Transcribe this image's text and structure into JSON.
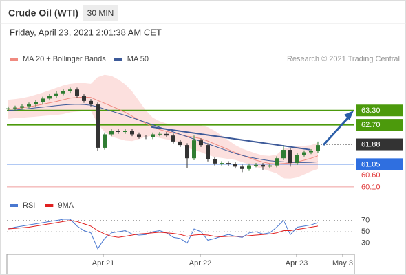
{
  "chart_data": {
    "type": "candlestick",
    "title": "Crude Oil (WTI)",
    "interval": "30 MIN",
    "timestamp": "Friday, April 23, 2021 2:01:38 AM CET",
    "credit": "Research © 2021 Trading Central",
    "x": [
      0,
      1,
      2,
      3,
      4,
      5,
      6,
      7,
      8,
      9,
      10,
      11,
      12,
      13,
      14,
      15,
      16,
      17,
      18,
      19,
      20,
      21,
      22,
      23,
      24,
      25,
      26,
      27,
      28,
      29,
      30,
      31,
      32,
      33,
      34,
      35,
      36,
      37,
      38,
      39,
      40,
      41,
      42,
      43,
      44,
      45
    ],
    "open": [
      63.35,
      63.39,
      63.42,
      63.48,
      63.55,
      63.65,
      63.8,
      63.92,
      64.02,
      64.12,
      64.18,
      63.9,
      63.7,
      63.55,
      61.74,
      62.3,
      62.45,
      62.4,
      62.45,
      62.3,
      62.2,
      62.18,
      62.3,
      62.32,
      62.25,
      62.0,
      61.85,
      61.3,
      62.05,
      61.85,
      61.25,
      61.08,
      61.1,
      61.05,
      60.95,
      60.85,
      61.0,
      61.02,
      60.95,
      61.0,
      61.3,
      61.65,
      61.1,
      61.45,
      61.55,
      61.6
    ],
    "high": [
      63.47,
      63.5,
      63.56,
      63.63,
      63.73,
      63.88,
      64.0,
      64.1,
      64.2,
      64.26,
      64.26,
      63.98,
      63.78,
      63.63,
      62.38,
      62.53,
      62.53,
      62.53,
      62.53,
      62.38,
      62.28,
      62.38,
      62.4,
      62.4,
      62.33,
      62.08,
      61.93,
      62.25,
      62.13,
      61.93,
      61.33,
      61.18,
      61.18,
      61.13,
      61.03,
      61.08,
      61.1,
      61.1,
      61.08,
      61.38,
      61.85,
      61.73,
      61.53,
      61.63,
      61.68,
      62.0
    ],
    "low": [
      63.27,
      63.31,
      63.34,
      63.4,
      63.47,
      63.57,
      63.72,
      63.84,
      63.94,
      64.04,
      63.82,
      63.62,
      63.47,
      61.6,
      61.66,
      62.22,
      62.32,
      62.32,
      62.22,
      62.12,
      62.1,
      62.1,
      62.22,
      62.17,
      61.92,
      61.77,
      60.9,
      61.22,
      61.77,
      61.17,
      61.0,
      61.0,
      60.97,
      60.87,
      60.72,
      60.77,
      60.92,
      60.8,
      60.87,
      60.92,
      61.22,
      60.95,
      61.02,
      61.37,
      61.47,
      61.52
    ],
    "close": [
      63.39,
      63.42,
      63.48,
      63.55,
      63.65,
      63.8,
      63.92,
      64.02,
      64.12,
      64.18,
      63.9,
      63.7,
      63.55,
      61.74,
      62.3,
      62.45,
      62.4,
      62.45,
      62.3,
      62.2,
      62.18,
      62.3,
      62.32,
      62.25,
      62.0,
      61.85,
      61.3,
      62.05,
      61.85,
      61.25,
      61.08,
      61.1,
      61.05,
      60.95,
      60.85,
      61.0,
      61.02,
      60.95,
      61.0,
      61.3,
      61.65,
      61.1,
      61.45,
      61.55,
      61.6,
      61.85
    ],
    "up_color": "#2f7d32",
    "down_color": "#333333",
    "series": [
      {
        "name": "MA 20 + Bollinger Bands",
        "color": "#f08a80",
        "values": [
          63.35,
          63.38,
          63.41,
          63.45,
          63.5,
          63.56,
          63.62,
          63.68,
          63.75,
          63.82,
          63.85,
          63.86,
          63.85,
          63.72,
          63.6,
          63.48,
          63.36,
          63.22,
          63.06,
          62.9,
          62.75,
          62.62,
          62.5,
          62.42,
          62.36,
          62.3,
          62.22,
          62.18,
          62.12,
          62.02,
          61.9,
          61.78,
          61.66,
          61.54,
          61.42,
          61.32,
          61.22,
          61.14,
          61.08,
          61.06,
          61.08,
          61.1,
          61.15,
          61.22,
          61.3,
          61.4
        ]
      },
      {
        "name": "MA 50",
        "color": "#3d5a99",
        "values": [
          63.3,
          63.32,
          63.35,
          63.38,
          63.41,
          63.44,
          63.47,
          63.5,
          63.53,
          63.55,
          63.56,
          63.55,
          63.52,
          63.45,
          63.36,
          63.27,
          63.18,
          63.09,
          63.0,
          62.9,
          62.8,
          62.7,
          62.6,
          62.5,
          62.4,
          62.3,
          62.2,
          62.1,
          62.0,
          61.9,
          61.8,
          61.7,
          61.6,
          61.5,
          61.42,
          61.35,
          61.29,
          61.24,
          61.2,
          61.17,
          61.15,
          61.13,
          61.12,
          61.12,
          61.13,
          61.15
        ]
      }
    ],
    "bb_color": "#fbd6d3",
    "bb_upper": [
      63.75,
      63.78,
      63.82,
      63.88,
      63.96,
      64.05,
      64.15,
      64.25,
      64.35,
      64.42,
      64.45,
      64.45,
      64.42,
      64.7,
      64.8,
      64.75,
      64.6,
      64.4,
      64.1,
      63.7,
      63.3,
      63.0,
      62.85,
      62.75,
      62.7,
      62.68,
      62.7,
      62.72,
      62.68,
      62.6,
      62.45,
      62.25,
      62.05,
      61.85,
      61.7,
      61.6,
      61.5,
      61.42,
      61.4,
      61.45,
      61.7,
      61.75,
      61.8,
      61.82,
      61.85,
      61.95
    ],
    "bb_lower": [
      62.95,
      62.98,
      63.0,
      63.02,
      63.04,
      63.07,
      63.09,
      63.11,
      63.15,
      63.22,
      63.25,
      63.27,
      63.28,
      62.74,
      62.4,
      62.21,
      62.12,
      62.04,
      62.02,
      62.1,
      62.2,
      62.24,
      62.15,
      62.09,
      62.02,
      61.92,
      61.74,
      61.64,
      61.56,
      61.44,
      61.35,
      61.31,
      61.27,
      61.23,
      61.14,
      61.04,
      60.94,
      60.86,
      60.76,
      60.67,
      60.46,
      60.45,
      60.5,
      60.62,
      60.75,
      60.85
    ],
    "levels": [
      {
        "value": 63.3,
        "label": "63.30",
        "color": "#4c9a0c",
        "filled": true,
        "line": "solid"
      },
      {
        "value": 62.7,
        "label": "62.70",
        "color": "#4c9a0c",
        "filled": true,
        "line": "solid"
      },
      {
        "value": 61.88,
        "label": "61.88",
        "color": "#333333",
        "filled": true,
        "line": "dotted"
      },
      {
        "value": 61.05,
        "label": "61.05",
        "color": "#2f6fe0",
        "filled": true,
        "line": "solid"
      },
      {
        "value": 60.6,
        "label": "60.60",
        "color": "#e03a3a",
        "filled": false,
        "line": "solid"
      },
      {
        "value": 60.1,
        "label": "60.10",
        "color": "#e03a3a",
        "filled": false,
        "line": "solid"
      }
    ],
    "trendline": {
      "x": [
        20.8,
        43.8
      ],
      "y": [
        62.61,
        61.66
      ],
      "color": "#3d5a99"
    },
    "xlim": [
      -0.2,
      50.3
    ],
    "xticks": [
      {
        "value": 13.8,
        "label": "Apr 21"
      },
      {
        "value": 27.9,
        "label": "Apr 22"
      },
      {
        "value": 41.9,
        "label": "Apr 23"
      },
      {
        "value": 48.6,
        "label": "May 3"
      }
    ],
    "ylim": [
      59.75,
      65.05
    ],
    "rsi": {
      "series": [
        {
          "name": "RSI",
          "color": "#4a78d0",
          "values": [
            55,
            58,
            60,
            62,
            64,
            66,
            68,
            70,
            72,
            72,
            60,
            52,
            48,
            20,
            38,
            48,
            50,
            52,
            46,
            44,
            45,
            50,
            52,
            48,
            40,
            38,
            30,
            55,
            50,
            35,
            38,
            42,
            45,
            42,
            40,
            48,
            50,
            46,
            48,
            58,
            70,
            45,
            58,
            60,
            62,
            66
          ]
        },
        {
          "name": "9MA",
          "color": "#e02020",
          "values": [
            55,
            56,
            57,
            58,
            60,
            62,
            64,
            66,
            68,
            70,
            68,
            64,
            60,
            52,
            46,
            42,
            40,
            42,
            44,
            46,
            47,
            48,
            49,
            48,
            47,
            45,
            42,
            44,
            45,
            44,
            42,
            41,
            42,
            42,
            42,
            43,
            44,
            45,
            46,
            48,
            52,
            52,
            54,
            56,
            58,
            60
          ]
        }
      ],
      "ylim": [
        10,
        100
      ],
      "yticks": [
        70,
        50,
        30
      ]
    }
  }
}
